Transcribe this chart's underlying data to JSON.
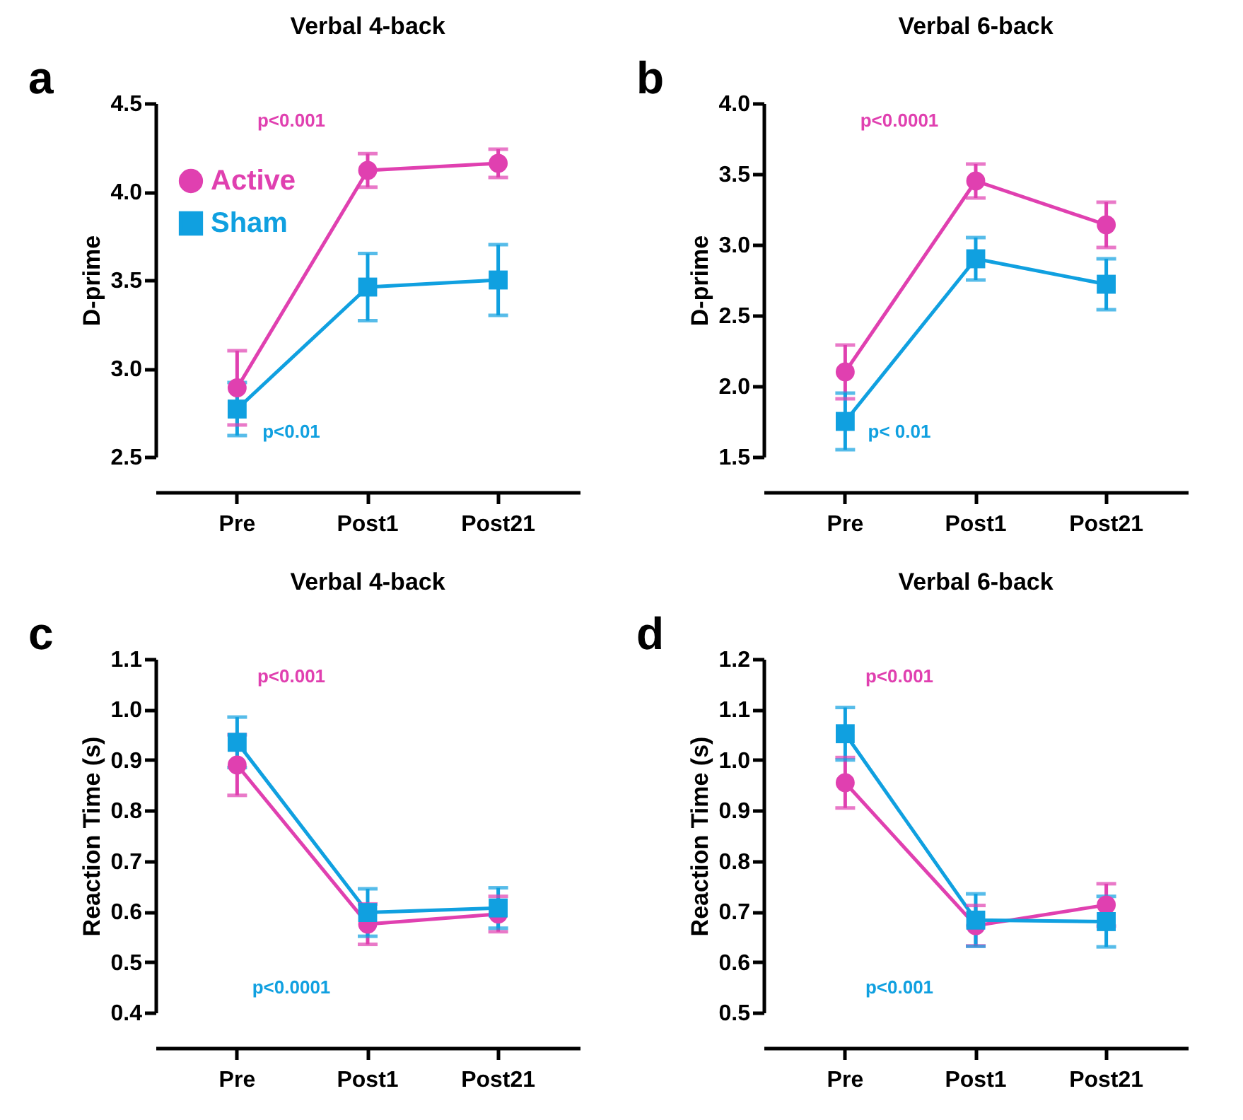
{
  "chart_data": [
    {
      "type": "line",
      "title": "Verbal 4-back",
      "ylabel": "D-prime",
      "categories": [
        "Pre",
        "Post1",
        "Post21"
      ],
      "ylim": [
        2.5,
        4.5
      ],
      "yticks": [
        2.5,
        {
          "value": 3,
          "label": "3.0"
        },
        3.5,
        {
          "value": 4,
          "label": "4.0"
        },
        4.5
      ],
      "legend": "top left",
      "grid": false,
      "line_style": "solid",
      "series": [
        {
          "name": "Active",
          "color": "#e040b0",
          "marker": "circle",
          "values": [
            2.89,
            4.12,
            4.16
          ],
          "errors": [
            0.21,
            0.095,
            0.08
          ]
        },
        {
          "name": "Sham",
          "color": "#10a0e0",
          "marker": "square",
          "values": [
            2.77,
            3.46,
            3.5
          ],
          "errors": [
            0.15,
            0.19,
            0.2
          ]
        }
      ],
      "annotations": [
        "a",
        "p<0.001",
        "p<0.01"
      ]
    },
    {
      "type": "line",
      "title": "Verbal 6-back",
      "ylabel": "D-prime",
      "categories": [
        "Pre",
        "Post1",
        "Post21"
      ],
      "ylim": [
        1.5,
        4.0
      ],
      "yticks": [
        1.5,
        {
          "value": 2,
          "label": "2.0"
        },
        2.5,
        {
          "value": 3,
          "label": "3.0"
        },
        3.5,
        {
          "value": 4,
          "label": "4.0"
        }
      ],
      "legend": "top left",
      "grid": false,
      "line_style": "solid",
      "series": [
        {
          "name": "Active",
          "color": "#e040b0",
          "marker": "circle",
          "values": [
            2.1,
            3.45,
            3.14
          ],
          "errors": [
            0.19,
            0.12,
            0.16
          ]
        },
        {
          "name": "Sham",
          "color": "#10a0e0",
          "marker": "square",
          "values": [
            1.75,
            2.9,
            2.72
          ],
          "errors": [
            0.2,
            0.15,
            0.18
          ]
        }
      ],
      "annotations": [
        "b",
        "p<0.0001",
        "p< 0.01"
      ]
    },
    {
      "type": "line",
      "title": "Verbal 4-back",
      "ylabel": "Reaction Time (s)",
      "categories": [
        "Pre",
        "Post1",
        "Post21"
      ],
      "ylim": [
        0.4,
        1.1
      ],
      "yticks": [
        0.4,
        0.5,
        0.6,
        0.7,
        0.8,
        0.9,
        {
          "value": 1,
          "label": "1.0"
        },
        1.1
      ],
      "legend": "right",
      "grid": false,
      "line_style": "solid",
      "series": [
        {
          "name": "Active",
          "color": "#e040b0",
          "marker": "circle",
          "values": [
            0.89,
            0.575,
            0.595
          ],
          "errors": [
            0.06,
            0.04,
            0.035
          ]
        },
        {
          "name": "Sham",
          "color": "#10a0e0",
          "marker": "square",
          "values": [
            0.935,
            0.598,
            0.607
          ],
          "errors": [
            0.05,
            0.047,
            0.04
          ]
        }
      ],
      "annotations": [
        "c",
        "p<0.001",
        "p<0.0001"
      ]
    },
    {
      "type": "line",
      "title": "Verbal 6-back",
      "ylabel": "Reaction Time (s)",
      "categories": [
        "Pre",
        "Post1",
        "Post21"
      ],
      "ylim": [
        0.5,
        1.2
      ],
      "yticks": [
        0.5,
        0.6,
        0.7,
        0.8,
        0.9,
        {
          "value": 1,
          "label": "1.0"
        },
        1.1,
        1.2
      ],
      "legend": "right",
      "grid": false,
      "line_style": "solid",
      "series": [
        {
          "name": "Active",
          "color": "#e040b0",
          "marker": "circle",
          "values": [
            0.955,
            0.672,
            0.713
          ],
          "errors": [
            0.05,
            0.04,
            0.042
          ]
        },
        {
          "name": "Sham",
          "color": "#10a0e0",
          "marker": "square",
          "values": [
            1.052,
            0.683,
            0.68
          ],
          "errors": [
            0.052,
            0.052,
            0.05
          ]
        }
      ],
      "annotations": [
        "d",
        "p<0.001",
        "p<0.001"
      ]
    }
  ]
}
